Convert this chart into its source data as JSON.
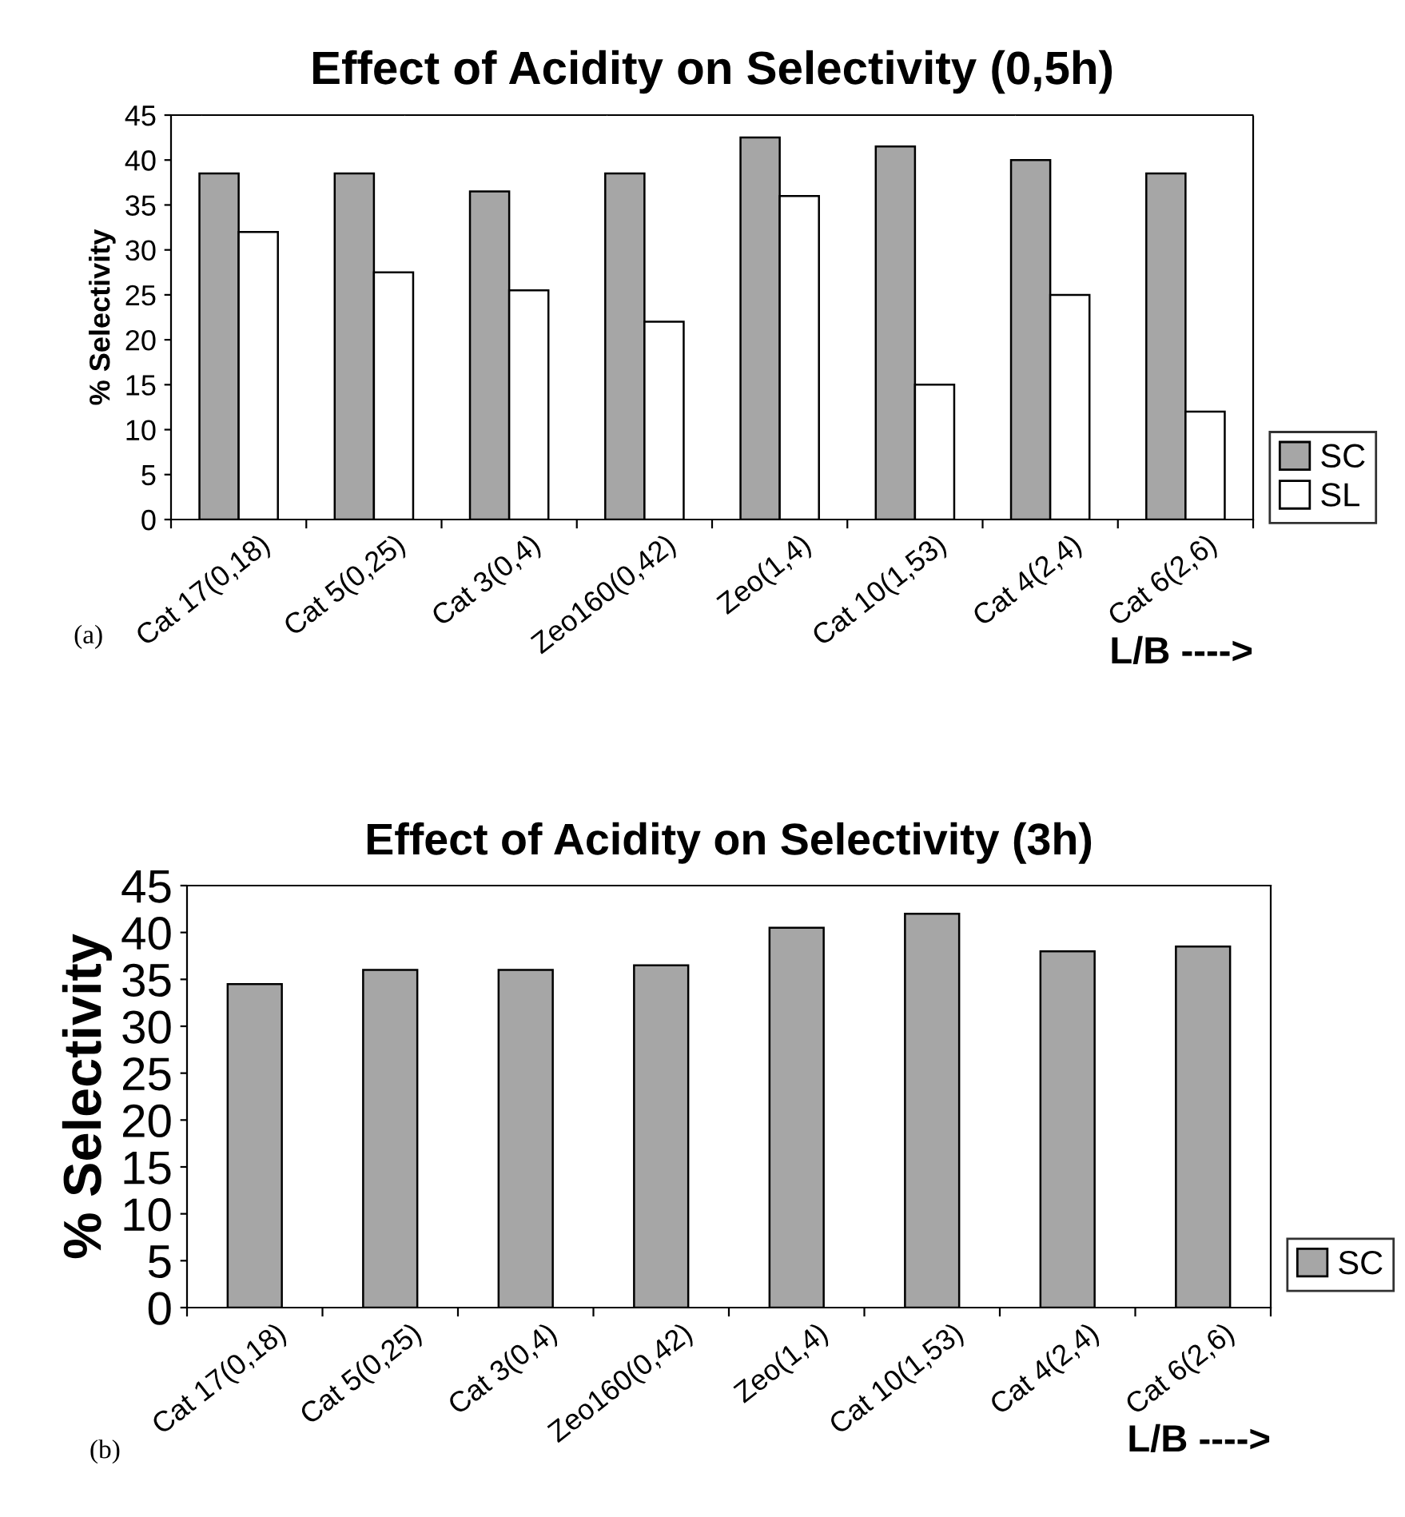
{
  "chart_data": [
    {
      "type": "bar",
      "title": "Effect of Acidity on Selectivity (0,5h)",
      "ylabel": "% Selectivity",
      "xlabel": "L/B ---->",
      "categories": [
        "Cat 17(0,18)",
        "Cat 5(0,25)",
        "Cat 3(0,4)",
        "Zeo160(0,42)",
        "Zeo(1,4)",
        "Cat 10(1,53)",
        "Cat 4(2,4)",
        "Cat 6(2,6)"
      ],
      "series": [
        {
          "name": "SC",
          "color": "#a6a6a6",
          "values": [
            38.5,
            38.5,
            36.5,
            38.5,
            42.5,
            41.5,
            40,
            38.5
          ]
        },
        {
          "name": "SL",
          "color": "#ffffff",
          "values": [
            32,
            27.5,
            25.5,
            22,
            36,
            15,
            25,
            12
          ]
        }
      ],
      "ylim": [
        0,
        45
      ],
      "yticks": [
        0,
        5,
        10,
        15,
        20,
        25,
        30,
        35,
        40,
        45
      ],
      "grid": false,
      "legend": "bottom right",
      "annotations": [
        "(a)"
      ]
    },
    {
      "type": "bar",
      "title": "Effect of Acidity on Selectivity (3h)",
      "ylabel": "% Selectivity",
      "xlabel": "L/B ---->",
      "categories": [
        "Cat 17(0,18)",
        "Cat 5(0,25)",
        "Cat 3(0,4)",
        "Zeo160(0,42)",
        "Zeo(1,4)",
        "Cat 10(1,53)",
        "Cat 4(2,4)",
        "Cat 6(2,6)"
      ],
      "series": [
        {
          "name": "SC",
          "color": "#a6a6a6",
          "values": [
            34.5,
            36,
            36,
            36.5,
            40.5,
            42,
            38,
            38.5
          ]
        }
      ],
      "ylim": [
        0,
        45
      ],
      "yticks": [
        0,
        5,
        10,
        15,
        20,
        25,
        30,
        35,
        40,
        45
      ],
      "grid": false,
      "legend": "bottom right",
      "annotations": [
        "(b)"
      ]
    }
  ]
}
